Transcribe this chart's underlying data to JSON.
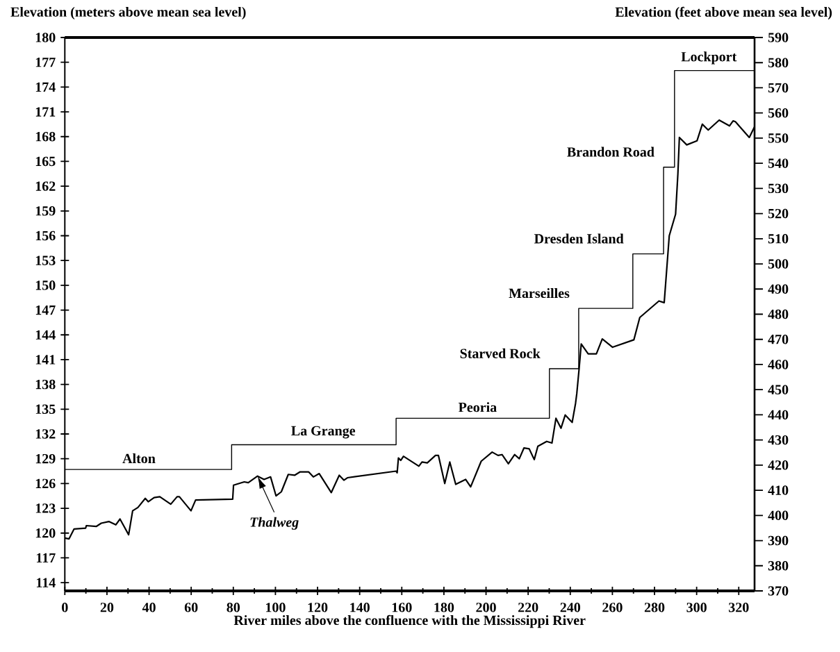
{
  "chart_data": {
    "type": "line",
    "xlabel": "River miles above the confluence with the Mississippi River",
    "ylabel": "Elevation (meters above mean sea level)",
    "y2label": "Elevation (feet above mean sea level)",
    "xlim": [
      0,
      327.5
    ],
    "xticks": [
      0,
      20,
      40,
      60,
      80,
      100,
      120,
      140,
      160,
      180,
      200,
      220,
      240,
      260,
      280,
      300,
      320
    ],
    "ylim": [
      113,
      180
    ],
    "yticks": [
      114,
      117,
      120,
      123,
      126,
      129,
      132,
      135,
      138,
      141,
      144,
      147,
      150,
      153,
      156,
      159,
      162,
      165,
      168,
      171,
      174,
      177,
      180
    ],
    "y2lim": [
      370,
      590
    ],
    "y2ticks": [
      370,
      380,
      390,
      400,
      410,
      420,
      430,
      440,
      450,
      460,
      470,
      480,
      490,
      500,
      510,
      520,
      530,
      540,
      550,
      560,
      570,
      580,
      590
    ],
    "series": [
      {
        "type": "step",
        "color": "#000000",
        "x": [
          0,
          79.2,
          157.3,
          230.1,
          244.0,
          269.7,
          284.3,
          289.5,
          327.5
        ],
        "values": [
          127.7,
          130.7,
          133.9,
          139.9,
          147.2,
          153.8,
          164.3,
          176.0,
          176.0
        ]
      },
      {
        "type": "line",
        "color": "#000000",
        "x": [
          0.0,
          2.0,
          4.4,
          9.9,
          10.2,
          14.9,
          17.3,
          20.9,
          24.2,
          26.2,
          30.3,
          32.2,
          34.7,
          38.2,
          39.6,
          42.4,
          45.1,
          50.3,
          53.3,
          54.4,
          59.9,
          62.1,
          79.7,
          80.1,
          85.2,
          87.1,
          91.5,
          94.6,
          97.7,
          100.3,
          102.8,
          106.1,
          109.1,
          111.6,
          115.8,
          118.0,
          120.8,
          126.5,
          130.3,
          132.5,
          134.2,
          157.3,
          157.8,
          158.4,
          159.5,
          160.8,
          168.1,
          169.6,
          172.1,
          176.0,
          177.4,
          180.4,
          182.8,
          185.6,
          190.3,
          192.7,
          197.7,
          202.9,
          205.7,
          207.6,
          210.6,
          213.6,
          215.8,
          218.0,
          220.5,
          222.9,
          224.6,
          228.8,
          231.3,
          233.2,
          235.6,
          237.6,
          240.9,
          242.5,
          243.1,
          244.2,
          245.2,
          248.5,
          252.4,
          255.2,
          260.1,
          270.2,
          273.0,
          282.1,
          284.6,
          287.0,
          290.0,
          291.1,
          291.8,
          295.3,
          300.2,
          302.7,
          305.5,
          310.7,
          315.6,
          317.3,
          318.4,
          325.0,
          327.5
        ],
        "values": [
          119.4,
          119.3,
          120.5,
          120.6,
          120.9,
          120.8,
          121.2,
          121.4,
          121.0,
          121.7,
          119.8,
          122.7,
          123.1,
          124.2,
          123.8,
          124.3,
          124.4,
          123.5,
          124.4,
          124.4,
          122.7,
          124.0,
          124.1,
          125.8,
          126.2,
          126.1,
          126.9,
          126.5,
          126.8,
          124.5,
          125.0,
          127.1,
          127.0,
          127.4,
          127.4,
          126.8,
          127.2,
          124.9,
          127.0,
          126.4,
          126.7,
          127.5,
          127.3,
          129.1,
          128.8,
          129.3,
          128.1,
          128.6,
          128.5,
          129.4,
          129.4,
          126.0,
          128.6,
          125.9,
          126.5,
          125.6,
          128.7,
          129.8,
          129.4,
          129.5,
          128.4,
          129.5,
          129.0,
          130.3,
          130.2,
          128.9,
          130.5,
          131.1,
          130.9,
          133.9,
          132.7,
          134.3,
          133.4,
          135.7,
          136.9,
          139.9,
          142.9,
          141.7,
          141.7,
          143.5,
          142.5,
          143.4,
          146.1,
          148.1,
          147.9,
          156.0,
          158.6,
          163.5,
          167.9,
          167.0,
          167.5,
          169.5,
          168.8,
          170.0,
          169.3,
          169.9,
          169.8,
          167.9,
          169.2
        ]
      }
    ],
    "annotations": [
      {
        "text": "Alton",
        "x": 35.2,
        "y": 127.7
      },
      {
        "text": "La Grange",
        "x": 122.7,
        "y": 130.7
      },
      {
        "text": "Peoria",
        "x": 196.0,
        "y": 133.9
      },
      {
        "text": "Starved Rock",
        "x": 230.1,
        "y": 139.9
      },
      {
        "text": "Marseilles",
        "x": 244.0,
        "y": 147.2
      },
      {
        "text": "Dresden Island",
        "x": 269.7,
        "y": 153.8
      },
      {
        "text": "Brandon Road",
        "x": 284.3,
        "y": 164.3
      },
      {
        "text": "Lockport",
        "x": 305.8,
        "y": 176.0
      },
      {
        "text": "Thalweg",
        "x": 91.5,
        "y": 126.9
      }
    ]
  }
}
